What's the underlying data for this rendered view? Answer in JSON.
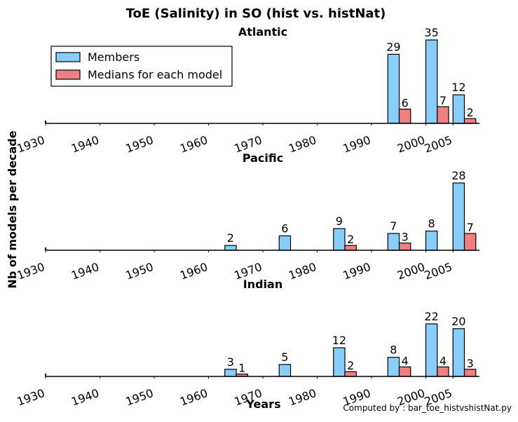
{
  "title": "ToE (Salinity) in SO (hist vs. histNat)",
  "ylabel": "Nb of models per decade",
  "xlabel": "Years",
  "footnote": "Computed by : bar_toe_histvshistNat.py",
  "legend": {
    "placement": "upper-left of first panel",
    "entries": [
      "Members",
      "Medians for each model"
    ]
  },
  "colors": {
    "members": "#87cefa",
    "medians": "#f08080",
    "edge": "#000000"
  },
  "chart_data": [
    {
      "type": "bar",
      "title": "Atlantic",
      "categories": [
        "1930-1939",
        "1940-1949",
        "1950-1959",
        "1960-1969",
        "1970-1979",
        "1980-1989",
        "1990-1999",
        "2000-2004",
        "2005"
      ],
      "xtick_labels": [
        "1930",
        "1940",
        "1950",
        "1960",
        "1970",
        "1980",
        "1990",
        "2000",
        "2005"
      ],
      "xtick_years": [
        1930,
        1940,
        1950,
        1960,
        1970,
        1980,
        1990,
        2000,
        2005
      ],
      "series": [
        {
          "name": "Members",
          "values": [
            0,
            0,
            0,
            0,
            0,
            0,
            29,
            35,
            12
          ]
        },
        {
          "name": "Medians for each model",
          "values": [
            0,
            0,
            0,
            0,
            0,
            0,
            6,
            7,
            2
          ]
        }
      ],
      "data_labels_shown_when": "value > 0",
      "ylim": [
        0,
        35
      ],
      "grid": false
    },
    {
      "type": "bar",
      "title": "Pacific",
      "categories": [
        "1930-1939",
        "1940-1949",
        "1950-1959",
        "1960-1969",
        "1970-1979",
        "1980-1989",
        "1990-1999",
        "2000-2004",
        "2005"
      ],
      "xtick_labels": [
        "1930",
        "1940",
        "1950",
        "1960",
        "1970",
        "1980",
        "1990",
        "2000",
        "2005"
      ],
      "xtick_years": [
        1930,
        1940,
        1950,
        1960,
        1970,
        1980,
        1990,
        2000,
        2005
      ],
      "series": [
        {
          "name": "Members",
          "values": [
            0,
            0,
            0,
            2,
            6,
            9,
            7,
            8,
            28
          ]
        },
        {
          "name": "Medians for each model",
          "values": [
            0,
            0,
            0,
            0,
            0,
            2,
            3,
            0,
            7
          ]
        }
      ],
      "data_labels_shown_when": "value > 0",
      "ylim": [
        0,
        28
      ],
      "grid": false
    },
    {
      "type": "bar",
      "title": "Indian",
      "categories": [
        "1930-1939",
        "1940-1949",
        "1950-1959",
        "1960-1969",
        "1970-1979",
        "1980-1989",
        "1990-1999",
        "2000-2004",
        "2005"
      ],
      "xtick_labels": [
        "1930",
        "1940",
        "1950",
        "1960",
        "1970",
        "1980",
        "1990",
        "2000",
        "2005"
      ],
      "xtick_years": [
        1930,
        1940,
        1950,
        1960,
        1970,
        1980,
        1990,
        2000,
        2005
      ],
      "series": [
        {
          "name": "Members",
          "values": [
            0,
            0,
            0,
            3,
            5,
            12,
            8,
            22,
            20
          ]
        },
        {
          "name": "Medians for each model",
          "values": [
            0,
            0,
            0,
            1,
            0,
            2,
            4,
            4,
            3
          ]
        }
      ],
      "data_labels_shown_when": "value > 0",
      "ylim": [
        0,
        22
      ],
      "grid": false
    }
  ]
}
